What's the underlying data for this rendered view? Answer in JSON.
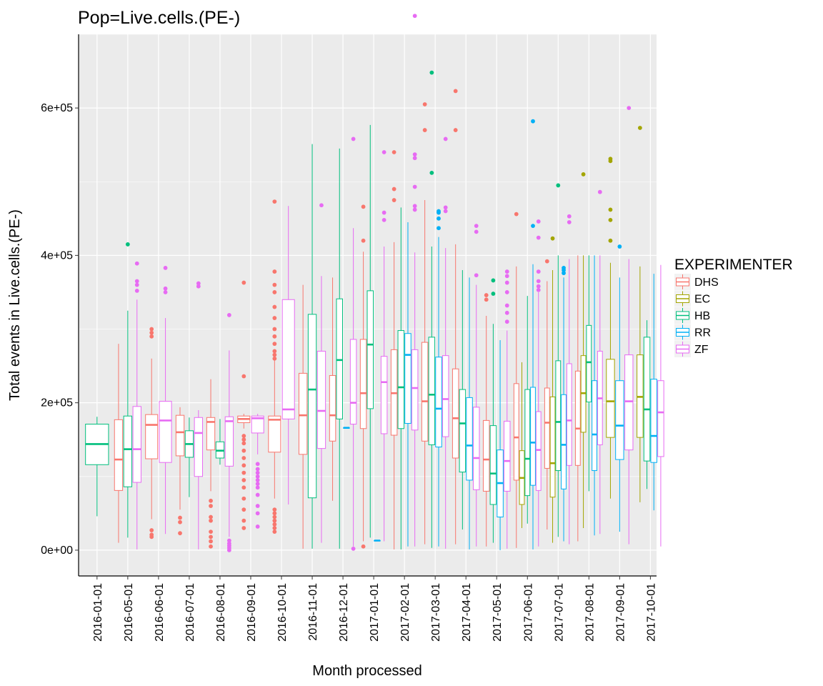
{
  "chart_data": {
    "type": "boxplot",
    "title": "Pop=Live.cells.(PE-)",
    "xlabel": "Month processed",
    "ylabel": "Total events in Live.cells.(PE-)",
    "ylim": [
      -35000,
      700000
    ],
    "yticks": [
      0,
      200000,
      400000,
      600000
    ],
    "ytick_labels": [
      "0e+00",
      "2e+05",
      "4e+05",
      "6e+05"
    ],
    "categories": [
      "2016-01-01",
      "2016-05-01",
      "2016-06-01",
      "2016-07-01",
      "2016-08-01",
      "2016-09-01",
      "2016-10-01",
      "2016-11-01",
      "2016-12-01",
      "2017-01-01",
      "2017-02-01",
      "2017-03-01",
      "2017-04-01",
      "2017-05-01",
      "2017-06-01",
      "2017-07-01",
      "2017-08-01",
      "2017-09-01",
      "2017-10-01"
    ],
    "grid": true,
    "legend_position": "right",
    "legend": {
      "title": "EXPERIMENTER",
      "entries": [
        {
          "name": "DHS",
          "color": "#F8766D"
        },
        {
          "name": "EC",
          "color": "#A3A500"
        },
        {
          "name": "HB",
          "color": "#00BF7D"
        },
        {
          "name": "RR",
          "color": "#00B0F6"
        },
        {
          "name": "ZF",
          "color": "#E76BF3"
        }
      ]
    },
    "boxes": [
      {
        "category": "2016-01-01",
        "group": "HB",
        "low": 46000,
        "q1": 116000,
        "median": 144000,
        "q3": 171000,
        "high": 181000,
        "outliers": []
      },
      {
        "category": "2016-05-01",
        "group": "DHS",
        "low": 10000,
        "q1": 81000,
        "median": 123000,
        "q3": 177000,
        "high": 280000,
        "outliers": []
      },
      {
        "category": "2016-05-01",
        "group": "HB",
        "low": 17000,
        "q1": 86000,
        "median": 137000,
        "q3": 182000,
        "high": 325000,
        "outliers": [
          415000
        ]
      },
      {
        "category": "2016-05-01",
        "group": "ZF",
        "low": 1000,
        "q1": 92000,
        "median": 137000,
        "q3": 195000,
        "high": 340000,
        "outliers": [
          352000,
          360000,
          365000,
          389000
        ]
      },
      {
        "category": "2016-06-01",
        "group": "DHS",
        "low": 42000,
        "q1": 124000,
        "median": 170000,
        "q3": 184000,
        "high": 260000,
        "outliers": [
          18000,
          21000,
          27000,
          290000,
          295000,
          300000
        ]
      },
      {
        "category": "2016-06-01",
        "group": "ZF",
        "low": 22000,
        "q1": 119000,
        "median": 176000,
        "q3": 202000,
        "high": 315000,
        "outliers": [
          350000,
          355000,
          383000
        ]
      },
      {
        "category": "2016-07-01",
        "group": "DHS",
        "low": 55000,
        "q1": 128000,
        "median": 160000,
        "q3": 183000,
        "high": 194000,
        "outliers": [
          23000,
          38000,
          44000
        ]
      },
      {
        "category": "2016-07-01",
        "group": "HB",
        "low": 72000,
        "q1": 126000,
        "median": 144000,
        "q3": 162000,
        "high": 180000,
        "outliers": []
      },
      {
        "category": "2016-07-01",
        "group": "ZF",
        "low": 1000,
        "q1": 100000,
        "median": 159000,
        "q3": 180000,
        "high": 190000,
        "outliers": [
          358000,
          362000
        ]
      },
      {
        "category": "2016-08-01",
        "group": "DHS",
        "low": 80000,
        "q1": 136000,
        "median": 174000,
        "q3": 180000,
        "high": 232000,
        "outliers": [
          5000,
          12000,
          18000,
          25000,
          40000,
          45000,
          60000,
          67000
        ]
      },
      {
        "category": "2016-08-01",
        "group": "HB",
        "low": 116000,
        "q1": 125000,
        "median": 135000,
        "q3": 147000,
        "high": 178000,
        "outliers": []
      },
      {
        "category": "2016-08-01",
        "group": "ZF",
        "low": 18000,
        "q1": 114000,
        "median": 175000,
        "q3": 181000,
        "high": 271000,
        "outliers": [
          0,
          3000,
          6000,
          9000,
          13000,
          319000
        ]
      },
      {
        "category": "2016-09-01",
        "group": "DHS",
        "low": 165000,
        "q1": 173000,
        "median": 178000,
        "q3": 182000,
        "high": 185000,
        "outliers": [
          30000,
          40000,
          55000,
          70000,
          85000,
          95000,
          105000,
          115000,
          125000,
          135000,
          145000,
          150000,
          155000,
          236000,
          363000
        ]
      },
      {
        "category": "2016-09-01",
        "group": "ZF",
        "low": 130000,
        "q1": 159000,
        "median": 179000,
        "q3": 182000,
        "high": 185000,
        "outliers": [
          32000,
          50000,
          60000,
          75000,
          85000,
          90000,
          95000,
          100000,
          105000,
          110000,
          117000
        ]
      },
      {
        "category": "2016-10-01",
        "group": "DHS",
        "low": 70000,
        "q1": 133000,
        "median": 177000,
        "q3": 182000,
        "high": 260000,
        "outliers": [
          25000,
          30000,
          35000,
          40000,
          45000,
          50000,
          55000,
          260000,
          265000,
          270000,
          280000,
          290000,
          300000,
          315000,
          330000,
          350000,
          360000,
          378000,
          473000
        ]
      },
      {
        "category": "2016-10-01",
        "group": "ZF",
        "low": 62000,
        "q1": 178000,
        "median": 191000,
        "q3": 340000,
        "high": 467000,
        "outliers": []
      },
      {
        "category": "2016-11-01",
        "group": "DHS",
        "low": 2000,
        "q1": 130000,
        "median": 183000,
        "q3": 240000,
        "high": 360000,
        "outliers": []
      },
      {
        "category": "2016-11-01",
        "group": "HB",
        "low": 2000,
        "q1": 71000,
        "median": 218000,
        "q3": 320000,
        "high": 551000,
        "outliers": []
      },
      {
        "category": "2016-11-01",
        "group": "ZF",
        "low": 10000,
        "q1": 138000,
        "median": 189000,
        "q3": 270000,
        "high": 372000,
        "outliers": [
          468000
        ]
      },
      {
        "category": "2016-12-01",
        "group": "DHS",
        "low": 67000,
        "q1": 148000,
        "median": 183000,
        "q3": 237000,
        "high": 370000,
        "outliers": []
      },
      {
        "category": "2016-12-01",
        "group": "HB",
        "low": 2000,
        "q1": 178000,
        "median": 258000,
        "q3": 341000,
        "high": 545000,
        "outliers": []
      },
      {
        "category": "2016-12-01",
        "group": "RR",
        "low": 166000,
        "q1": 166000,
        "median": 166000,
        "q3": 166000,
        "high": 166000,
        "outliers": []
      },
      {
        "category": "2016-12-01",
        "group": "ZF",
        "low": 5000,
        "q1": 171000,
        "median": 200000,
        "q3": 286000,
        "high": 437000,
        "outliers": [
          2000,
          558000
        ]
      },
      {
        "category": "2017-01-01",
        "group": "DHS",
        "low": 12000,
        "q1": 165000,
        "median": 213000,
        "q3": 286000,
        "high": 405000,
        "outliers": [
          5000,
          420000,
          466000
        ]
      },
      {
        "category": "2017-01-01",
        "group": "HB",
        "low": 17000,
        "q1": 192000,
        "median": 279000,
        "q3": 352000,
        "high": 577000,
        "outliers": []
      },
      {
        "category": "2017-01-01",
        "group": "RR",
        "low": 13000,
        "q1": 13000,
        "median": 13000,
        "q3": 13000,
        "high": 13000,
        "outliers": []
      },
      {
        "category": "2017-01-01",
        "group": "ZF",
        "low": 12000,
        "q1": 158000,
        "median": 228000,
        "q3": 263000,
        "high": 412000,
        "outliers": [
          448000,
          458000,
          540000
        ]
      },
      {
        "category": "2017-02-01",
        "group": "DHS",
        "low": 1000,
        "q1": 156000,
        "median": 213000,
        "q3": 272000,
        "high": 418000,
        "outliers": [
          475000,
          490000,
          540000
        ]
      },
      {
        "category": "2017-02-01",
        "group": "HB",
        "low": 1000,
        "q1": 165000,
        "median": 221000,
        "q3": 298000,
        "high": 465000,
        "outliers": []
      },
      {
        "category": "2017-02-01",
        "group": "RR",
        "low": 5000,
        "q1": 172000,
        "median": 265000,
        "q3": 294000,
        "high": 445000,
        "outliers": []
      },
      {
        "category": "2017-02-01",
        "group": "ZF",
        "low": 5000,
        "q1": 163000,
        "median": 220000,
        "q3": 272000,
        "high": 404000,
        "outliers": [
          462000,
          467000,
          493000,
          532000,
          537000,
          725000
        ]
      },
      {
        "category": "2017-03-01",
        "group": "DHS",
        "low": 8000,
        "q1": 148000,
        "median": 202000,
        "q3": 282000,
        "high": 475000,
        "outliers": [
          570000,
          605000
        ]
      },
      {
        "category": "2017-03-01",
        "group": "HB",
        "low": 3000,
        "q1": 143000,
        "median": 211000,
        "q3": 289000,
        "high": 412000,
        "outliers": [
          512000,
          648000
        ]
      },
      {
        "category": "2017-03-01",
        "group": "RR",
        "low": 5000,
        "q1": 140000,
        "median": 192000,
        "q3": 262000,
        "high": 425000,
        "outliers": [
          437000,
          450000,
          458000,
          460000
        ]
      },
      {
        "category": "2017-03-01",
        "group": "ZF",
        "low": 2000,
        "q1": 154000,
        "median": 205000,
        "q3": 264000,
        "high": 410000,
        "outliers": [
          460000,
          465000,
          558000
        ]
      },
      {
        "category": "2017-04-01",
        "group": "DHS",
        "low": 8000,
        "q1": 125000,
        "median": 179000,
        "q3": 246000,
        "high": 415000,
        "outliers": [
          570000,
          623000
        ]
      },
      {
        "category": "2017-04-01",
        "group": "HB",
        "low": 28000,
        "q1": 106000,
        "median": 172000,
        "q3": 218000,
        "high": 380000,
        "outliers": []
      },
      {
        "category": "2017-04-01",
        "group": "RR",
        "low": 1000,
        "q1": 95000,
        "median": 142000,
        "q3": 207000,
        "high": 370000,
        "outliers": []
      },
      {
        "category": "2017-04-01",
        "group": "ZF",
        "low": 5000,
        "q1": 82000,
        "median": 125000,
        "q3": 194000,
        "high": 360000,
        "outliers": [
          373000,
          432000,
          440000
        ]
      },
      {
        "category": "2017-05-01",
        "group": "DHS",
        "low": 5000,
        "q1": 80000,
        "median": 123000,
        "q3": 176000,
        "high": 318000,
        "outliers": [
          340000,
          346000
        ]
      },
      {
        "category": "2017-05-01",
        "group": "HB",
        "low": 10000,
        "q1": 62000,
        "median": 104000,
        "q3": 169000,
        "high": 307000,
        "outliers": [
          348000,
          366000
        ]
      },
      {
        "category": "2017-05-01",
        "group": "RR",
        "low": 0,
        "q1": 45000,
        "median": 91000,
        "q3": 136000,
        "high": 285000,
        "outliers": []
      },
      {
        "category": "2017-05-01",
        "group": "ZF",
        "low": 2000,
        "q1": 80000,
        "median": 121000,
        "q3": 175000,
        "high": 298000,
        "outliers": [
          310000,
          322000,
          332000,
          350000,
          363000,
          372000,
          378000
        ]
      },
      {
        "category": "2017-06-01",
        "group": "DHS",
        "low": 3000,
        "q1": 95000,
        "median": 153000,
        "q3": 226000,
        "high": 385000,
        "outliers": [
          456000
        ]
      },
      {
        "category": "2017-06-01",
        "group": "EC",
        "low": 30000,
        "q1": 62000,
        "median": 98000,
        "q3": 135000,
        "high": 255000,
        "outliers": []
      },
      {
        "category": "2017-06-01",
        "group": "HB",
        "low": 36000,
        "q1": 74000,
        "median": 124000,
        "q3": 218000,
        "high": 345000,
        "outliers": []
      },
      {
        "category": "2017-06-01",
        "group": "RR",
        "low": 1000,
        "q1": 88000,
        "median": 146000,
        "q3": 221000,
        "high": 388000,
        "outliers": [
          440000,
          582000
        ]
      },
      {
        "category": "2017-06-01",
        "group": "ZF",
        "low": 5000,
        "q1": 81000,
        "median": 136000,
        "q3": 188000,
        "high": 350000,
        "outliers": [
          353000,
          358000,
          365000,
          378000,
          424000,
          446000
        ]
      },
      {
        "category": "2017-07-01",
        "group": "DHS",
        "low": 28000,
        "q1": 111000,
        "median": 173000,
        "q3": 220000,
        "high": 365000,
        "outliers": [
          392000
        ]
      },
      {
        "category": "2017-07-01",
        "group": "EC",
        "low": 10000,
        "q1": 72000,
        "median": 118000,
        "q3": 208000,
        "high": 380000,
        "outliers": [
          423000
        ]
      },
      {
        "category": "2017-07-01",
        "group": "HB",
        "low": 18000,
        "q1": 108000,
        "median": 174000,
        "q3": 257000,
        "high": 400000,
        "outliers": [
          495000
        ]
      },
      {
        "category": "2017-07-01",
        "group": "RR",
        "low": 12000,
        "q1": 83000,
        "median": 143000,
        "q3": 211000,
        "high": 370000,
        "outliers": [
          376000,
          380000,
          383000
        ]
      },
      {
        "category": "2017-07-01",
        "group": "ZF",
        "low": 8000,
        "q1": 115000,
        "median": 176000,
        "q3": 253000,
        "high": 395000,
        "outliers": [
          445000,
          453000
        ]
      },
      {
        "category": "2017-08-01",
        "group": "DHS",
        "low": 12000,
        "q1": 115000,
        "median": 165000,
        "q3": 243000,
        "high": 400000,
        "outliers": []
      },
      {
        "category": "2017-08-01",
        "group": "EC",
        "low": 30000,
        "q1": 160000,
        "median": 213000,
        "q3": 264000,
        "high": 400000,
        "outliers": [
          510000
        ]
      },
      {
        "category": "2017-08-01",
        "group": "HB",
        "low": 80000,
        "q1": 201000,
        "median": 255000,
        "q3": 305000,
        "high": 400000,
        "outliers": []
      },
      {
        "category": "2017-08-01",
        "group": "RR",
        "low": 20000,
        "q1": 108000,
        "median": 157000,
        "q3": 230000,
        "high": 400000,
        "outliers": []
      },
      {
        "category": "2017-08-01",
        "group": "ZF",
        "low": 22000,
        "q1": 143000,
        "median": 206000,
        "q3": 270000,
        "high": 400000,
        "outliers": [
          486000
        ]
      },
      {
        "category": "2017-09-01",
        "group": "EC",
        "low": 70000,
        "q1": 153000,
        "median": 202000,
        "q3": 259000,
        "high": 390000,
        "outliers": [
          420000,
          448000,
          462000,
          528000,
          531000
        ]
      },
      {
        "category": "2017-09-01",
        "group": "RR",
        "low": 25000,
        "q1": 123000,
        "median": 169000,
        "q3": 230000,
        "high": 370000,
        "outliers": [
          412000
        ]
      },
      {
        "category": "2017-09-01",
        "group": "ZF",
        "low": 8000,
        "q1": 136000,
        "median": 202000,
        "q3": 265000,
        "high": 395000,
        "outliers": [
          600000
        ]
      },
      {
        "category": "2017-10-01",
        "group": "EC",
        "low": 65000,
        "q1": 153000,
        "median": 208000,
        "q3": 265000,
        "high": 385000,
        "outliers": [
          573000
        ]
      },
      {
        "category": "2017-10-01",
        "group": "HB",
        "low": 83000,
        "q1": 121000,
        "median": 191000,
        "q3": 289000,
        "high": 312000,
        "outliers": []
      },
      {
        "category": "2017-10-01",
        "group": "RR",
        "low": 54000,
        "q1": 119000,
        "median": 155000,
        "q3": 232000,
        "high": 375000,
        "outliers": []
      },
      {
        "category": "2017-10-01",
        "group": "ZF",
        "low": 5000,
        "q1": 127000,
        "median": 187000,
        "q3": 230000,
        "high": 387000,
        "outliers": []
      }
    ]
  }
}
